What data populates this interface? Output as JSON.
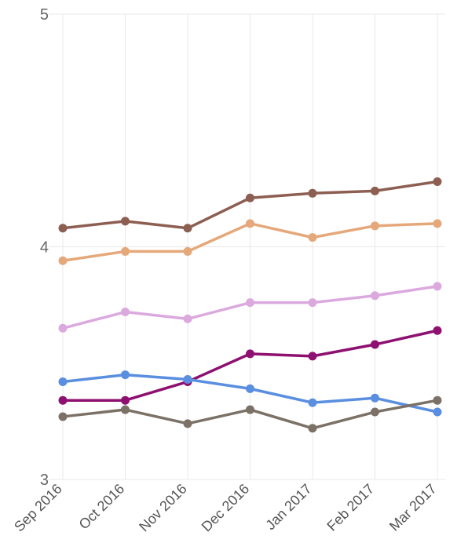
{
  "chart_data": {
    "type": "line",
    "categories": [
      "Sep 2016",
      "Oct 2016",
      "Nov 2016",
      "Dec 2016",
      "Jan 2017",
      "Feb 2017",
      "Mar 2017"
    ],
    "ylim": [
      3,
      5
    ],
    "yticks": [
      "3",
      "4",
      "5"
    ],
    "grid": true,
    "series": [
      {
        "color": "#8d5e52",
        "values": [
          4.08,
          4.11,
          4.08,
          4.21,
          4.23,
          4.24,
          4.28
        ]
      },
      {
        "color": "#e5a87a",
        "values": [
          3.94,
          3.98,
          3.98,
          4.1,
          4.04,
          4.09,
          4.1
        ]
      },
      {
        "color": "#dba9de",
        "values": [
          3.65,
          3.72,
          3.69,
          3.76,
          3.76,
          3.79,
          3.83
        ]
      },
      {
        "color": "#8e1070",
        "values": [
          3.34,
          3.34,
          3.42,
          3.54,
          3.53,
          3.58,
          3.64
        ]
      },
      {
        "color": "#5a8ee0",
        "values": [
          3.42,
          3.45,
          3.43,
          3.39,
          3.33,
          3.35,
          3.29
        ]
      },
      {
        "color": "#7c7166",
        "values": [
          3.27,
          3.3,
          3.24,
          3.3,
          3.22,
          3.29,
          3.34
        ]
      }
    ]
  }
}
